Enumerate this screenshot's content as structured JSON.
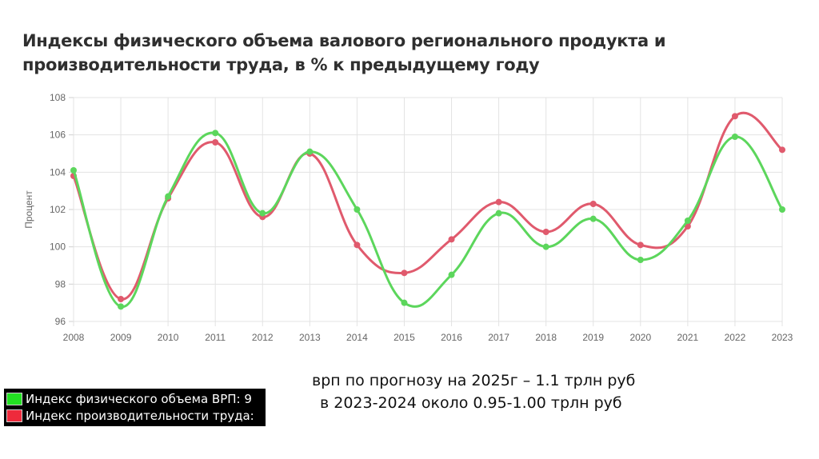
{
  "page": {
    "title": "Индексы физического объема валового регионального продукта и производительности труда, в % к предыдущему году"
  },
  "chart_data": {
    "type": "line",
    "title": "Индексы физического объема валового регионального продукта и производительности труда, в % к предыдущему году",
    "xlabel": "",
    "ylabel": "Процент",
    "ylim": [
      96,
      108
    ],
    "yticks": [
      96,
      98,
      100,
      102,
      104,
      106,
      108
    ],
    "grid": true,
    "categories": [
      "2008",
      "2009",
      "2010",
      "2011",
      "2012",
      "2013",
      "2014",
      "2015",
      "2016",
      "2017",
      "2018",
      "2019",
      "2020",
      "2021",
      "2022",
      "2023"
    ],
    "series": [
      {
        "name": "Индекс физического объема ВРП: 9",
        "color": "#5cd65c",
        "values": [
          104.1,
          96.8,
          102.7,
          106.1,
          101.8,
          105.1,
          102.0,
          97.0,
          98.5,
          101.8,
          100.0,
          101.5,
          99.3,
          101.4,
          105.9,
          102.0
        ]
      },
      {
        "name": "Индекс производительности труда:",
        "color": "#e05a6d",
        "values": [
          103.8,
          97.2,
          102.6,
          105.6,
          101.6,
          105.0,
          100.1,
          98.6,
          100.4,
          102.4,
          100.8,
          102.3,
          100.1,
          101.1,
          107.0,
          105.2
        ]
      }
    ]
  },
  "legend": {
    "items": [
      {
        "label": "Индекс физического объема ВРП: 9",
        "color": "#22e022"
      },
      {
        "label": "Индекс производительности труда:",
        "color": "#ee2a3c"
      }
    ]
  },
  "note": {
    "line1": "врп по прогнозу на 2025г – 1.1 трлн руб",
    "line2": "в 2023-2024 около 0.95-1.00 трлн руб"
  }
}
